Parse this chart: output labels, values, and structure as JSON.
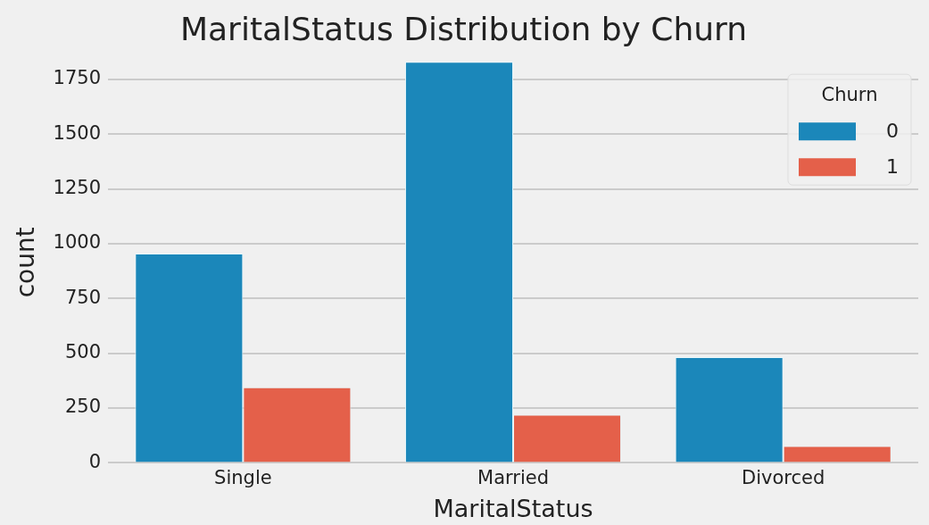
{
  "chart_data": {
    "type": "bar",
    "title": "MaritalStatus Distribution by Churn",
    "xlabel": "MaritalStatus",
    "ylabel": "count",
    "legend_title": "Churn",
    "categories": [
      "Single",
      "Married",
      "Divorced"
    ],
    "series": [
      {
        "name": "0",
        "color": "#1b87ba",
        "values": [
          955,
          1830,
          482
        ]
      },
      {
        "name": "1",
        "color": "#e4604a",
        "values": [
          345,
          220,
          77
        ]
      }
    ],
    "ylim": [
      0,
      1830
    ],
    "yticks": [
      0,
      250,
      500,
      750,
      1000,
      1250,
      1500,
      1750
    ],
    "grid": "y",
    "legend": "top right"
  }
}
